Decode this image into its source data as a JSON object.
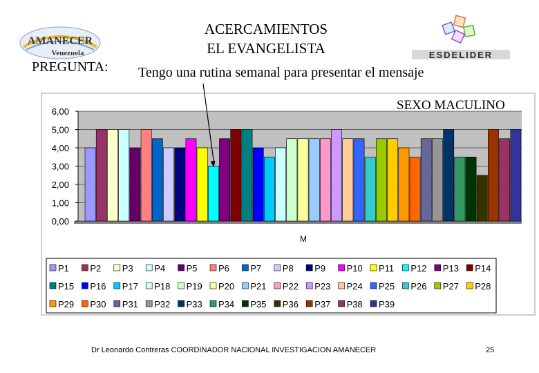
{
  "header": {
    "title_line1": "ACERCAMIENTOS",
    "title_line2": "EL EVANGELISTA",
    "question_label": "PREGUNTA:",
    "question_text": "Tengo una rutina semanal para presentar el mensaje",
    "sex_label": "SEXO MACULINO"
  },
  "logos": {
    "left_line1": "AMANECER",
    "left_line2": "Venezuela",
    "right_text": "ESDELIDER"
  },
  "footer": {
    "left": "Dr Leonardo Contreras   COORDINADOR NACIONAL INVESTIGACION AMANECER",
    "page": "25"
  },
  "chart_data": {
    "type": "bar",
    "title": "",
    "xlabel": "M",
    "ylabel": "",
    "ylim": [
      0,
      6
    ],
    "yticks": [
      "0,00",
      "1,00",
      "2,00",
      "3,00",
      "4,00",
      "5,00",
      "6,00"
    ],
    "grid": true,
    "legend_position": "bottom",
    "series": [
      {
        "name": "P1",
        "value": 4.0,
        "color": "#9999FF"
      },
      {
        "name": "P2",
        "value": 5.0,
        "color": "#993366"
      },
      {
        "name": "P3",
        "value": 5.0,
        "color": "#FFFFCC"
      },
      {
        "name": "P4",
        "value": 5.0,
        "color": "#CCFFFF"
      },
      {
        "name": "P5",
        "value": 4.0,
        "color": "#660066"
      },
      {
        "name": "P6",
        "value": 5.0,
        "color": "#FF8080"
      },
      {
        "name": "P7",
        "value": 4.5,
        "color": "#0066CC"
      },
      {
        "name": "P8",
        "value": 4.0,
        "color": "#CCCCFF"
      },
      {
        "name": "P9",
        "value": 4.0,
        "color": "#000080"
      },
      {
        "name": "P10",
        "value": 4.5,
        "color": "#FF00FF"
      },
      {
        "name": "P11",
        "value": 4.0,
        "color": "#FFFF00"
      },
      {
        "name": "P12",
        "value": 3.0,
        "color": "#00FFFF"
      },
      {
        "name": "P13",
        "value": 4.5,
        "color": "#800080"
      },
      {
        "name": "P14",
        "value": 5.0,
        "color": "#800000"
      },
      {
        "name": "P15",
        "value": 5.0,
        "color": "#008080"
      },
      {
        "name": "P16",
        "value": 4.0,
        "color": "#0000FF"
      },
      {
        "name": "P17",
        "value": 3.5,
        "color": "#00CCFF"
      },
      {
        "name": "P18",
        "value": 4.0,
        "color": "#CCFFFF"
      },
      {
        "name": "P19",
        "value": 4.5,
        "color": "#CCFFCC"
      },
      {
        "name": "P20",
        "value": 4.5,
        "color": "#FFFF99"
      },
      {
        "name": "P21",
        "value": 4.5,
        "color": "#99CCFF"
      },
      {
        "name": "P22",
        "value": 4.5,
        "color": "#FF99CC"
      },
      {
        "name": "P23",
        "value": 5.0,
        "color": "#CC99FF"
      },
      {
        "name": "P24",
        "value": 4.5,
        "color": "#FFCC99"
      },
      {
        "name": "P25",
        "value": 4.5,
        "color": "#3366FF"
      },
      {
        "name": "P26",
        "value": 3.5,
        "color": "#33CCCC"
      },
      {
        "name": "P27",
        "value": 4.5,
        "color": "#99CC00"
      },
      {
        "name": "P28",
        "value": 4.5,
        "color": "#FFCC00"
      },
      {
        "name": "P29",
        "value": 4.0,
        "color": "#FF9900"
      },
      {
        "name": "P30",
        "value": 3.5,
        "color": "#FF6600"
      },
      {
        "name": "P31",
        "value": 4.5,
        "color": "#666699"
      },
      {
        "name": "P32",
        "value": 4.5,
        "color": "#969696"
      },
      {
        "name": "P33",
        "value": 5.0,
        "color": "#003366"
      },
      {
        "name": "P34",
        "value": 3.5,
        "color": "#339966"
      },
      {
        "name": "P35",
        "value": 3.5,
        "color": "#003300"
      },
      {
        "name": "P36",
        "value": 2.5,
        "color": "#333300"
      },
      {
        "name": "P37",
        "value": 5.0,
        "color": "#993300"
      },
      {
        "name": "P38",
        "value": 4.5,
        "color": "#993366"
      },
      {
        "name": "P39",
        "value": 5.0,
        "color": "#333399"
      }
    ],
    "annotation": "arrow pointing to P12"
  }
}
